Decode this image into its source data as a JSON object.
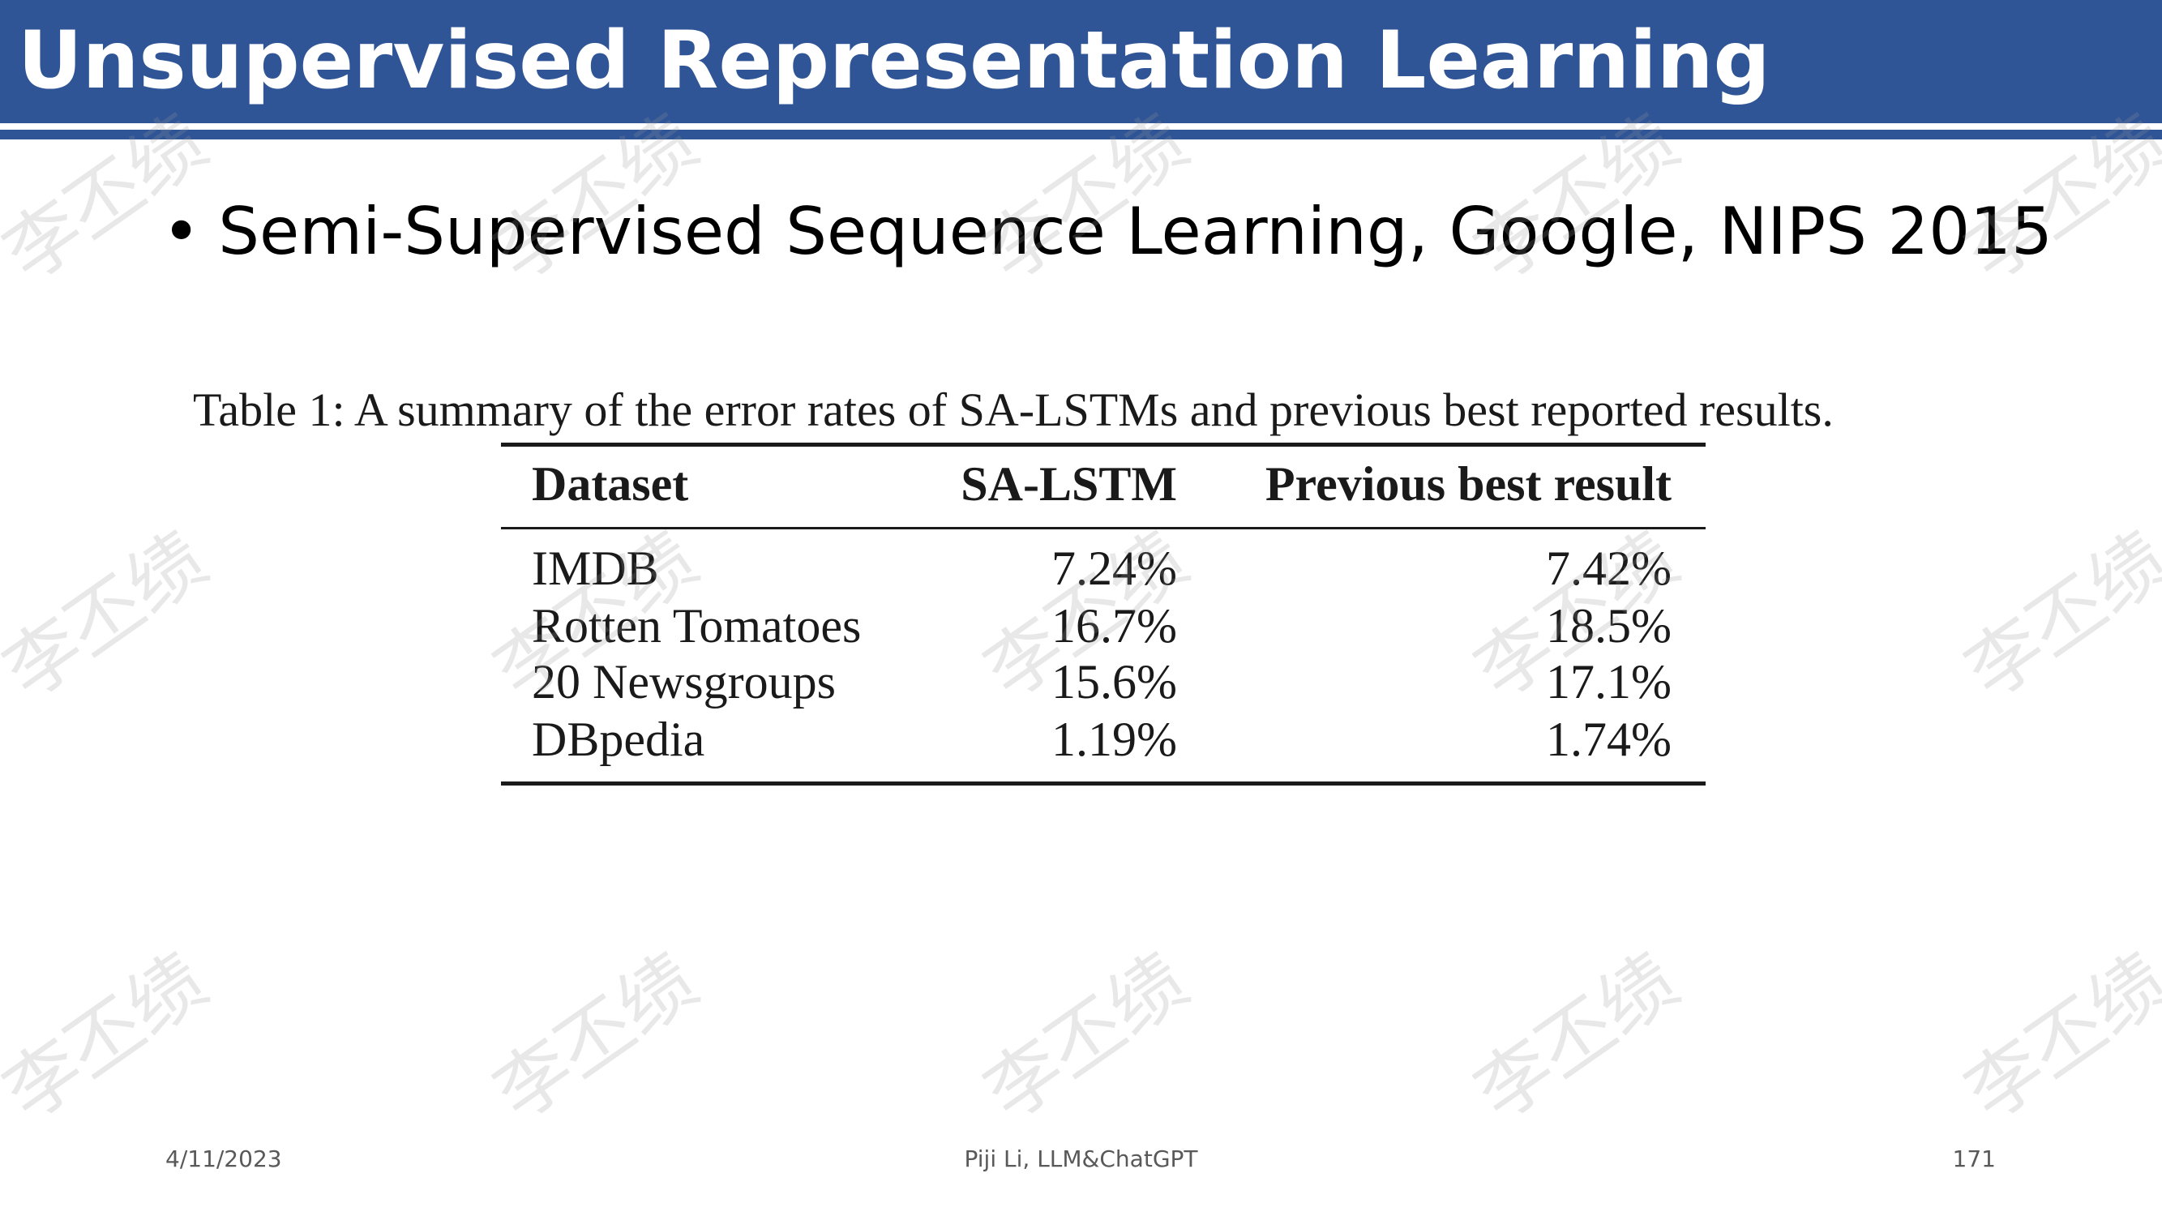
{
  "slide": {
    "title": "Unsupervised Representation Learning",
    "bullet_marker": "•",
    "bullet_text": "Semi-Supervised Sequence Learning, Google, NIPS 2015",
    "colors": {
      "title_bar": "#2f5597",
      "title_text": "#ffffff",
      "body_text": "#000000",
      "footer_text": "#595959"
    }
  },
  "table": {
    "caption": "Table 1: A summary of the error rates of SA-LSTMs and previous best reported results.",
    "headers": [
      "Dataset",
      "SA-LSTM",
      "Previous best result"
    ],
    "rows": [
      [
        "IMDB",
        "7.24%",
        "7.42%"
      ],
      [
        "Rotten Tomatoes",
        "16.7%",
        "18.5%"
      ],
      [
        "20 Newsgroups",
        "15.6%",
        "17.1%"
      ],
      [
        "DBpedia",
        "1.19%",
        "1.74%"
      ]
    ]
  },
  "footer": {
    "date": "4/11/2023",
    "center": "Piji Li, LLM&ChatGPT",
    "page_number": "171"
  },
  "watermark": {
    "text": "李丕绩"
  }
}
